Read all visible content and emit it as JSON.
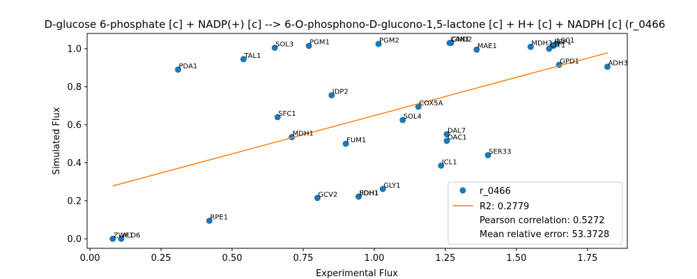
{
  "chart_data": {
    "type": "scatter",
    "title": "D-glucose 6-phosphate [c] + NADP(+) [c] --> 6-O-phosphono-D-glucono-1,5-lactone [c] + H+ [c] + NADPH [c] (r_0466",
    "xlabel": "Experimental Flux",
    "ylabel": "Simulated Flux",
    "xlim": [
      -0.01,
      1.89
    ],
    "ylim": [
      -0.05,
      1.08
    ],
    "x_ticks": [
      "0.00",
      "0.25",
      "0.50",
      "0.75",
      "1.00",
      "1.25",
      "1.50",
      "1.75"
    ],
    "y_ticks": [
      "0.0",
      "0.2",
      "0.4",
      "0.6",
      "0.8",
      "1.0"
    ],
    "x_tick_values": [
      0,
      0.25,
      0.5,
      0.75,
      1.0,
      1.25,
      1.5,
      1.75
    ],
    "y_tick_values": [
      0,
      0.2,
      0.4,
      0.6,
      0.8,
      1.0
    ],
    "grid": false,
    "marker_color": "#1f77b4",
    "line_color": "#ff7f0e",
    "points": [
      {
        "label": "ZWF1",
        "x": 0.08,
        "y": 0.0
      },
      {
        "label": "ALD6",
        "x": 0.11,
        "y": 0.0
      },
      {
        "label": "PDA1",
        "x": 0.31,
        "y": 0.89
      },
      {
        "label": "RPE1",
        "x": 0.42,
        "y": 0.095
      },
      {
        "label": "TAL1",
        "x": 0.54,
        "y": 0.945
      },
      {
        "label": "SOL3",
        "x": 0.65,
        "y": 1.005
      },
      {
        "label": "SFC1",
        "x": 0.66,
        "y": 0.64
      },
      {
        "label": "MDH1",
        "x": 0.71,
        "y": 0.535
      },
      {
        "label": "PGM1",
        "x": 0.77,
        "y": 1.015
      },
      {
        "label": "GCV2",
        "x": 0.8,
        "y": 0.215
      },
      {
        "label": "IDP2",
        "x": 0.85,
        "y": 0.755
      },
      {
        "label": "FUM1",
        "x": 0.9,
        "y": 0.5
      },
      {
        "label": "PDH1",
        "x": 0.945,
        "y": 0.222
      },
      {
        "label": "SDH1",
        "x": 0.945,
        "y": 0.222
      },
      {
        "label": "PGM2",
        "x": 1.015,
        "y": 1.025
      },
      {
        "label": "GLY1",
        "x": 1.03,
        "y": 0.262
      },
      {
        "label": "SOL4",
        "x": 1.1,
        "y": 0.625
      },
      {
        "label": "COX5A",
        "x": 1.155,
        "y": 0.695
      },
      {
        "label": "ICL1",
        "x": 1.235,
        "y": 0.385
      },
      {
        "label": "DAL7",
        "x": 1.255,
        "y": 0.55
      },
      {
        "label": "OAC1",
        "x": 1.255,
        "y": 0.515
      },
      {
        "label": "CAN1",
        "x": 1.265,
        "y": 1.03
      },
      {
        "label": "GND2",
        "x": 1.27,
        "y": 1.03
      },
      {
        "label": "MAE1",
        "x": 1.36,
        "y": 0.995
      },
      {
        "label": "SER33",
        "x": 1.4,
        "y": 0.44
      },
      {
        "label": "MDH3",
        "x": 1.55,
        "y": 1.01
      },
      {
        "label": "CIT1",
        "x": 1.615,
        "y": 1.0
      },
      {
        "label": "FBP1",
        "x": 1.63,
        "y": 1.015
      },
      {
        "label": "LSC1",
        "x": 1.64,
        "y": 1.025
      },
      {
        "label": "GPD1",
        "x": 1.65,
        "y": 0.915
      },
      {
        "label": "ADH3",
        "x": 1.82,
        "y": 0.905
      }
    ],
    "fit_line": {
      "x": [
        0.08,
        1.82
      ],
      "y": [
        0.278,
        0.978
      ]
    },
    "legend": {
      "position": "lower-right",
      "series_name": "r_0466",
      "fit_name": "R2: 0.2779",
      "extra": [
        "Pearson correlation: 0.5272",
        "Mean relative error: 53.3728"
      ]
    }
  }
}
